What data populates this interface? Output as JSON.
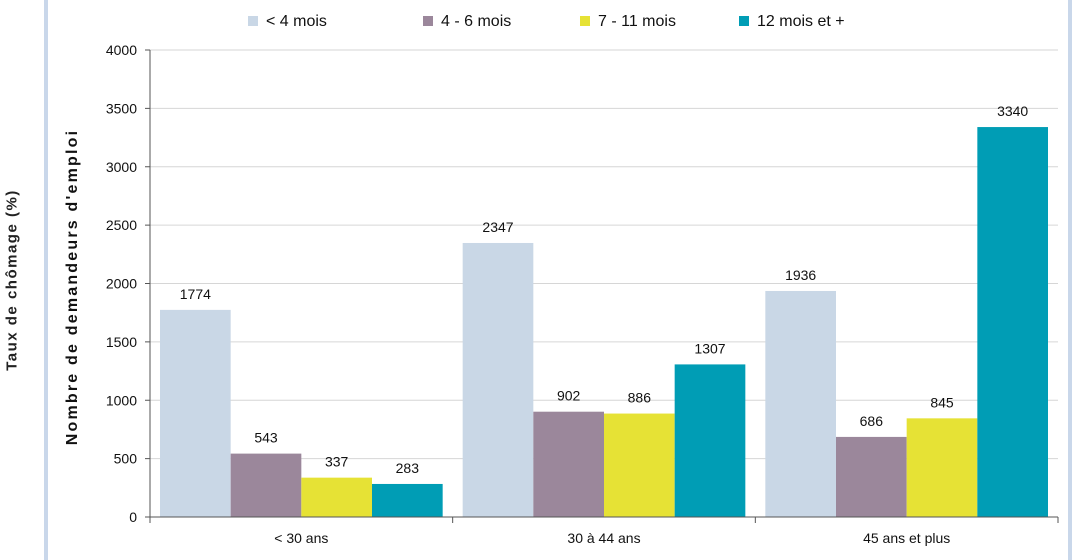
{
  "chart_data": {
    "type": "bar",
    "title": "",
    "xlabel": "",
    "ylabel": "Nombre de demandeurs d'emploi",
    "secondary_ylabel": "Taux de chômage (%)",
    "categories": [
      "< 30 ans",
      "30 à 44 ans",
      "45 ans et plus"
    ],
    "ylim": [
      0,
      4000
    ],
    "y_ticks": [
      0,
      500,
      1000,
      1500,
      2000,
      2500,
      3000,
      3500,
      4000
    ],
    "grid": true,
    "legend_position": "top",
    "series": [
      {
        "name": "< 4 mois",
        "color": "#c9d7e6",
        "values": [
          1774,
          2347,
          1936
        ]
      },
      {
        "name": "4 - 6 mois",
        "color": "#9b879b",
        "values": [
          543,
          902,
          686
        ]
      },
      {
        "name": "7 - 11 mois",
        "color": "#e6e235",
        "values": [
          337,
          886,
          845
        ]
      },
      {
        "name": "12 mois et +",
        "color": "#009db5",
        "values": [
          283,
          1307,
          3340
        ]
      }
    ]
  }
}
